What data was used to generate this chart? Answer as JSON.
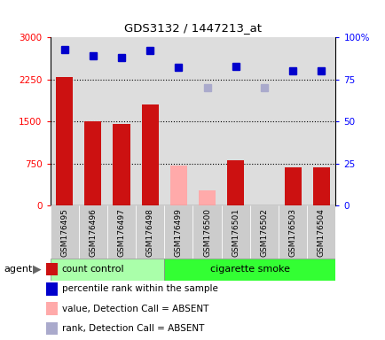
{
  "title": "GDS3132 / 1447213_at",
  "samples": [
    "GSM176495",
    "GSM176496",
    "GSM176497",
    "GSM176498",
    "GSM176499",
    "GSM176500",
    "GSM176501",
    "GSM176502",
    "GSM176503",
    "GSM176504"
  ],
  "groups": [
    "control",
    "control",
    "control",
    "control",
    "cigarette smoke",
    "cigarette smoke",
    "cigarette smoke",
    "cigarette smoke",
    "cigarette smoke",
    "cigarette smoke"
  ],
  "bar_values": [
    2300,
    1500,
    1450,
    1800,
    720,
    280,
    810,
    null,
    680,
    680
  ],
  "bar_absent": [
    false,
    false,
    false,
    false,
    true,
    true,
    false,
    true,
    false,
    false
  ],
  "rank_values": [
    93,
    89,
    88,
    92,
    82,
    70,
    83,
    70,
    80,
    80
  ],
  "rank_absent": [
    false,
    false,
    false,
    false,
    false,
    true,
    false,
    true,
    false,
    false
  ],
  "ylim_left": [
    0,
    3000
  ],
  "ylim_right": [
    0,
    100
  ],
  "yticks_left": [
    0,
    750,
    1500,
    2250,
    3000
  ],
  "ytick_labels_left": [
    "0",
    "750",
    "1500",
    "2250",
    "3000"
  ],
  "yticks_right": [
    0,
    25,
    50,
    75,
    100
  ],
  "ytick_labels_right": [
    "0",
    "25",
    "50",
    "75",
    "100%"
  ],
  "hlines": [
    750,
    1500,
    2250
  ],
  "bar_color_present": "#cc1111",
  "bar_color_absent": "#ffaaaa",
  "dot_color_present": "#0000cc",
  "dot_color_absent": "#aaaacc",
  "control_color": "#aaffaa",
  "smoke_color": "#33ff33",
  "agent_label": "agent",
  "legend_items": [
    {
      "label": "count",
      "color": "#cc1111"
    },
    {
      "label": "percentile rank within the sample",
      "color": "#0000cc"
    },
    {
      "label": "value, Detection Call = ABSENT",
      "color": "#ffaaaa"
    },
    {
      "label": "rank, Detection Call = ABSENT",
      "color": "#aaaacc"
    }
  ],
  "plot_bg": "#dddddd",
  "bar_width": 0.6
}
